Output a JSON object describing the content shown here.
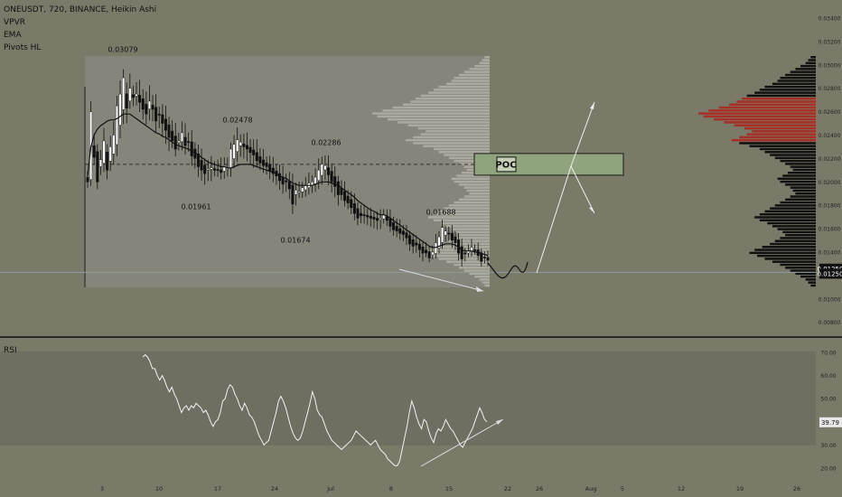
{
  "header": {
    "symbol_line": "ONEUSDT, 720, BINANCE, Heikin Ashi",
    "indicators": [
      "VPVR",
      "EMA",
      "Pivots HL"
    ]
  },
  "colors": {
    "background": "#7b7a69",
    "up_candle": "#ffffff",
    "down_candle": "#111111",
    "ema": "#111111",
    "vp_value_area": "#a72f25",
    "vp_other": "#111111",
    "vp_overlay": "#c9c8bc",
    "poc_box": "#8fa37c",
    "rsi_line": "#ffffff"
  },
  "poc": {
    "label": "POC",
    "price": 0.0215
  },
  "pivots": [
    {
      "label": "0.03079",
      "price": 0.03079,
      "kind": "high"
    },
    {
      "label": "0.02478",
      "price": 0.02478,
      "kind": "high"
    },
    {
      "label": "0.01961",
      "price": 0.01961,
      "kind": "low"
    },
    {
      "label": "0.02286",
      "price": 0.02286,
      "kind": "high"
    },
    {
      "label": "0.01674",
      "price": 0.01674,
      "kind": "low"
    },
    {
      "label": "0.01688",
      "price": 0.01688,
      "kind": "high"
    }
  ],
  "price_scale": {
    "ticks": [
      "0.03400",
      "0.03200",
      "0.03000",
      "0.02800",
      "0.02600",
      "0.02400",
      "0.02200",
      "0.02000",
      "0.01800",
      "0.01600",
      "0.01400",
      "0.01200",
      "0.01000",
      "0.00800"
    ],
    "current_label": "0.01259",
    "current_price": 0.01259,
    "level_label": "0.01250",
    "level_price": 0.0125
  },
  "time_axis": {
    "ticks": [
      "3",
      "10",
      "17",
      "24",
      "Jul",
      "8",
      "15",
      "22",
      "26",
      "Aug",
      "5",
      "12",
      "19",
      "26"
    ]
  },
  "rsi": {
    "title": "RSI",
    "ticks": [
      "70.00",
      "60.00",
      "50.00",
      "40.00",
      "30.00",
      "20.00"
    ],
    "current_label": "39.79",
    "current_value": 39.79,
    "values": [
      68,
      69,
      68,
      66,
      63,
      63,
      60,
      58,
      60,
      58,
      55,
      53,
      55,
      52,
      50,
      47,
      44,
      46,
      47,
      45,
      47,
      46,
      48,
      47,
      46,
      44,
      45,
      43,
      40,
      38,
      40,
      41,
      44,
      49,
      50,
      54,
      56,
      55,
      52,
      50,
      47,
      45,
      48,
      46,
      43,
      42,
      40,
      37,
      34,
      32,
      30,
      31,
      32,
      36,
      40,
      44,
      49,
      51,
      49,
      46,
      42,
      38,
      35,
      33,
      32,
      33,
      36,
      40,
      44,
      48,
      53,
      50,
      45,
      43,
      42,
      39,
      36,
      34,
      32,
      31,
      30,
      29,
      28,
      29,
      30,
      31,
      32,
      34,
      36,
      35,
      34,
      33,
      32,
      31,
      30,
      31,
      32,
      30,
      28,
      27,
      26,
      24,
      23,
      22,
      21,
      21,
      23,
      28,
      33,
      38,
      44,
      49,
      46,
      42,
      39,
      37,
      41,
      40,
      36,
      33,
      31,
      35,
      37,
      36,
      38,
      41,
      39,
      37,
      36,
      34,
      32,
      30,
      29,
      31,
      33,
      35,
      37,
      40,
      43,
      46,
      44,
      41,
      40
    ]
  },
  "chart_data": {
    "type": "candlestick",
    "title": "ONEUSDT, 720, BINANCE, Heikin Ashi",
    "ylim": [
      0.008,
      0.0345
    ],
    "closes": [
      0.02,
      0.026,
      0.0221,
      0.02,
      0.0219,
      0.0235,
      0.021,
      0.023,
      0.024,
      0.0265,
      0.0275,
      0.0289,
      0.0263,
      0.028,
      0.0272,
      0.0275,
      0.0268,
      0.0262,
      0.0258,
      0.0269,
      0.0262,
      0.0252,
      0.0257,
      0.025,
      0.0244,
      0.0238,
      0.0235,
      0.0228,
      0.0235,
      0.0242,
      0.0231,
      0.0234,
      0.0222,
      0.022,
      0.0213,
      0.021,
      0.0207,
      0.0211,
      0.0212,
      0.021,
      0.021,
      0.0208,
      0.0214,
      0.0212,
      0.0228,
      0.0232,
      0.0236,
      0.0234,
      0.023,
      0.0228,
      0.0225,
      0.0223,
      0.0218,
      0.0216,
      0.0214,
      0.0213,
      0.0209,
      0.0207,
      0.0205,
      0.0201,
      0.0198,
      0.02,
      0.0194,
      0.0181,
      0.0193,
      0.0192,
      0.0195,
      0.0197,
      0.0199,
      0.02,
      0.0204,
      0.021,
      0.0215,
      0.0214,
      0.0206,
      0.02,
      0.0196,
      0.0189,
      0.0189,
      0.0184,
      0.0182,
      0.0178,
      0.0173,
      0.0169,
      0.0171,
      0.0171,
      0.017,
      0.0169,
      0.0168,
      0.0167,
      0.0169,
      0.0172,
      0.0167,
      0.0162,
      0.0159,
      0.0158,
      0.0156,
      0.0155,
      0.0152,
      0.0147,
      0.0145,
      0.0146,
      0.0142,
      0.0139,
      0.0139,
      0.0135,
      0.014,
      0.0148,
      0.0153,
      0.0161,
      0.0158,
      0.0156,
      0.015,
      0.0148,
      0.0139,
      0.0134,
      0.0139,
      0.0141,
      0.0144,
      0.0142,
      0.0137,
      0.0132,
      0.0135,
      0.0133
    ],
    "ema_values": [
      0.0205,
      0.023,
      0.024,
      0.0245,
      0.0248,
      0.025,
      0.0252,
      0.0253,
      0.0253,
      0.0254,
      0.0256,
      0.0258,
      0.0258,
      0.0258,
      0.0256,
      0.0254,
      0.0252,
      0.025,
      0.0248,
      0.0246,
      0.0244,
      0.0242,
      0.0241,
      0.0239,
      0.0238,
      0.0236,
      0.0234,
      0.0232,
      0.0231,
      0.023,
      0.0229,
      0.0228,
      0.0226,
      0.0225,
      0.0223,
      0.0221,
      0.0219,
      0.0217,
      0.0216,
      0.0215,
      0.0214,
      0.0213,
      0.0213,
      0.0212,
      0.0212,
      0.0213,
      0.0214,
      0.0215,
      0.0215,
      0.0215,
      0.0215,
      0.0214,
      0.0213,
      0.0212,
      0.0211,
      0.021,
      0.0209,
      0.0208,
      0.0207,
      0.0205,
      0.0204,
      0.0203,
      0.0201,
      0.0199,
      0.0198,
      0.0197,
      0.0197,
      0.0197,
      0.0197,
      0.0197,
      0.0198,
      0.0199,
      0.02,
      0.02,
      0.02,
      0.0199,
      0.0198,
      0.0197,
      0.0195,
      0.0193,
      0.0191,
      0.0189,
      0.0187,
      0.0184,
      0.0182,
      0.018,
      0.0178,
      0.0176,
      0.0175,
      0.0173,
      0.0172,
      0.0172,
      0.0171,
      0.0169,
      0.0167,
      0.0165,
      0.0163,
      0.0161,
      0.0159,
      0.0157,
      0.0155,
      0.0153,
      0.0151,
      0.0149,
      0.0147,
      0.0145,
      0.0144,
      0.0144,
      0.0145,
      0.0146,
      0.0147,
      0.0147,
      0.0147,
      0.0146,
      0.0144,
      0.0142,
      0.0141,
      0.0141,
      0.0141,
      0.014,
      0.014,
      0.0139,
      0.0138,
      0.0137
    ],
    "volume_profile": [
      2,
      3,
      4,
      6,
      8,
      10,
      12,
      14,
      15,
      17,
      20,
      22,
      24,
      27,
      29,
      31,
      34,
      38,
      42,
      46,
      44,
      40,
      36,
      32,
      28,
      25,
      27,
      30,
      33,
      30,
      26,
      22,
      20,
      18,
      16,
      14,
      12,
      10,
      9,
      11,
      13,
      15,
      14,
      12,
      10,
      9,
      8,
      10,
      12,
      14,
      16,
      18,
      20,
      22,
      24,
      22,
      19,
      17,
      15,
      13,
      12,
      14,
      16,
      18,
      21,
      24,
      26,
      23,
      20,
      17,
      14,
      12,
      10,
      8,
      6,
      4,
      3,
      2
    ]
  }
}
